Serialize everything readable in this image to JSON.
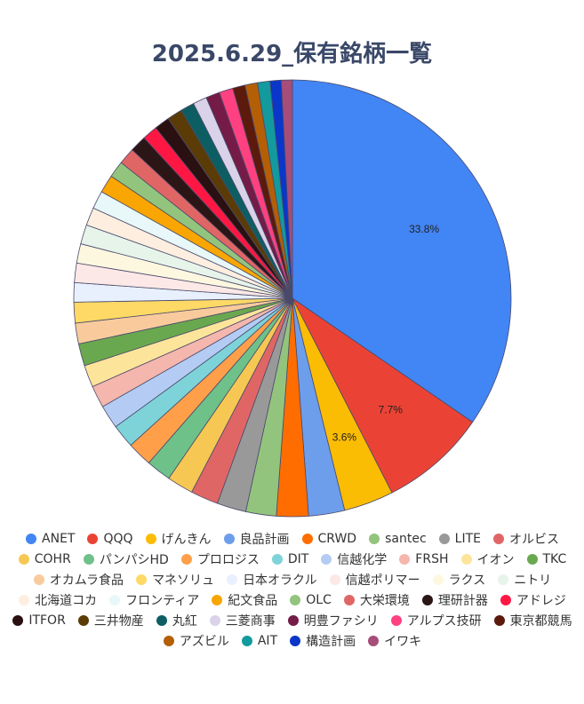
{
  "chart_data": {
    "type": "pie",
    "title": "2025.6.29_保有銘柄一覧",
    "legend_position": "bottom",
    "slices": [
      {
        "name": "ANET",
        "value": 33.8,
        "color": "#4285f4",
        "label": "33.8%"
      },
      {
        "name": "QQQ",
        "value": 7.7,
        "color": "#ea4335",
        "label": "7.7%"
      },
      {
        "name": "げんきん",
        "value": 3.6,
        "color": "#fbbc04",
        "label": "3.6%"
      },
      {
        "name": "良品計画",
        "value": 2.6,
        "color": "#6d9eeb"
      },
      {
        "name": "CRWD",
        "value": 2.3,
        "color": "#ff6d01"
      },
      {
        "name": "santec",
        "value": 2.2,
        "color": "#93c47d"
      },
      {
        "name": "LITE",
        "value": 2.1,
        "color": "#999999"
      },
      {
        "name": "オルビス",
        "value": 2.0,
        "color": "#e06666"
      },
      {
        "name": "COHR",
        "value": 1.9,
        "color": "#f6c853"
      },
      {
        "name": "パンパシHD",
        "value": 1.8,
        "color": "#6fc18a"
      },
      {
        "name": "プロロジス",
        "value": 1.8,
        "color": "#ff9f4a"
      },
      {
        "name": "DIT",
        "value": 1.7,
        "color": "#7dd3d8"
      },
      {
        "name": "信越化学",
        "value": 1.7,
        "color": "#b4ccf4"
      },
      {
        "name": "FRSH",
        "value": 1.6,
        "color": "#f4b6ad"
      },
      {
        "name": "イオン",
        "value": 1.6,
        "color": "#fde49b"
      },
      {
        "name": "TKC",
        "value": 1.6,
        "color": "#6aa84f"
      },
      {
        "name": "オカムラ食品",
        "value": 1.5,
        "color": "#f9cb9c"
      },
      {
        "name": "マネソリュ",
        "value": 1.5,
        "color": "#ffd966"
      },
      {
        "name": "日本オラクル",
        "value": 1.4,
        "color": "#e8f0fe"
      },
      {
        "name": "信越ポリマー",
        "value": 1.4,
        "color": "#fce8e6"
      },
      {
        "name": "ラクス",
        "value": 1.4,
        "color": "#fef7e0"
      },
      {
        "name": "ニトリ",
        "value": 1.4,
        "color": "#e6f4ea"
      },
      {
        "name": "北海道コカ",
        "value": 1.3,
        "color": "#fdeee0"
      },
      {
        "name": "フロンティア",
        "value": 1.3,
        "color": "#e8f7f8"
      },
      {
        "name": "紀文食品",
        "value": 1.3,
        "color": "#f9a602"
      },
      {
        "name": "OLC",
        "value": 1.2,
        "color": "#93c47d"
      },
      {
        "name": "大栄環境",
        "value": 1.2,
        "color": "#e06666"
      },
      {
        "name": "理研計器",
        "value": 1.2,
        "color": "#2b1515"
      },
      {
        "name": "アドレジ",
        "value": 1.1,
        "color": "#ff1744"
      },
      {
        "name": "ITFOR",
        "value": 1.1,
        "color": "#2a1010"
      },
      {
        "name": "三井物産",
        "value": 1.1,
        "color": "#5b3b06"
      },
      {
        "name": "丸紅",
        "value": 1.0,
        "color": "#0d5e63"
      },
      {
        "name": "三菱商事",
        "value": 1.0,
        "color": "#d9d2e9"
      },
      {
        "name": "明豊ファシリ",
        "value": 1.0,
        "color": "#741b47"
      },
      {
        "name": "アルプス技研",
        "value": 1.0,
        "color": "#ff4081"
      },
      {
        "name": "東京都競馬",
        "value": 0.9,
        "color": "#5b1a0c"
      },
      {
        "name": "アズビル",
        "value": 0.9,
        "color": "#b45f06"
      },
      {
        "name": "AIT",
        "value": 0.9,
        "color": "#139a9e"
      },
      {
        "name": "構造計画",
        "value": 0.8,
        "color": "#0a36c9"
      },
      {
        "name": "イワキ",
        "value": 0.8,
        "color": "#a64d79"
      }
    ]
  }
}
